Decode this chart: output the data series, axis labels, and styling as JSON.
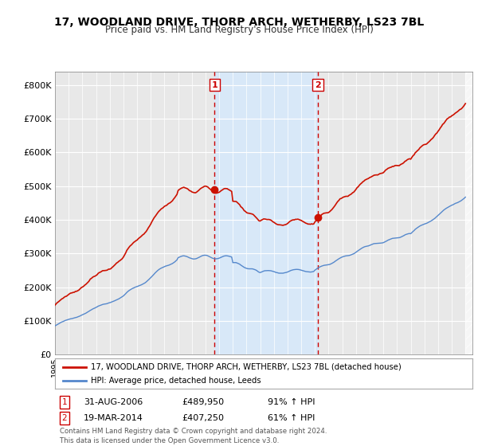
{
  "title": "17, WOODLAND DRIVE, THORP ARCH, WETHERBY, LS23 7BL",
  "subtitle": "Price paid vs. HM Land Registry's House Price Index (HPI)",
  "legend_line1": "17, WOODLAND DRIVE, THORP ARCH, WETHERBY, LS23 7BL (detached house)",
  "legend_line2": "HPI: Average price, detached house, Leeds",
  "transaction1_date": "31-AUG-2006",
  "transaction1_price": "£489,950",
  "transaction1_hpi": "91% ↑ HPI",
  "transaction2_date": "19-MAR-2014",
  "transaction2_price": "£407,250",
  "transaction2_hpi": "61% ↑ HPI",
  "footer": "Contains HM Land Registry data © Crown copyright and database right 2024.\nThis data is licensed under the Open Government Licence v3.0.",
  "hpi_color": "#5588cc",
  "price_color": "#cc1100",
  "vline_color": "#cc0000",
  "shade_color": "#d8e8f8",
  "bg_chart_color": "#f0f0f0",
  "ylim": [
    0,
    840000
  ],
  "yticks": [
    0,
    100000,
    200000,
    300000,
    400000,
    500000,
    600000,
    700000,
    800000
  ],
  "ytick_labels": [
    "£0",
    "£100K",
    "£200K",
    "£300K",
    "£400K",
    "£500K",
    "£600K",
    "£700K",
    "£800K"
  ],
  "year_start": 1995,
  "year_end": 2025,
  "t1": 2006.667,
  "t2": 2014.208,
  "price1": 489950,
  "price2": 407250
}
